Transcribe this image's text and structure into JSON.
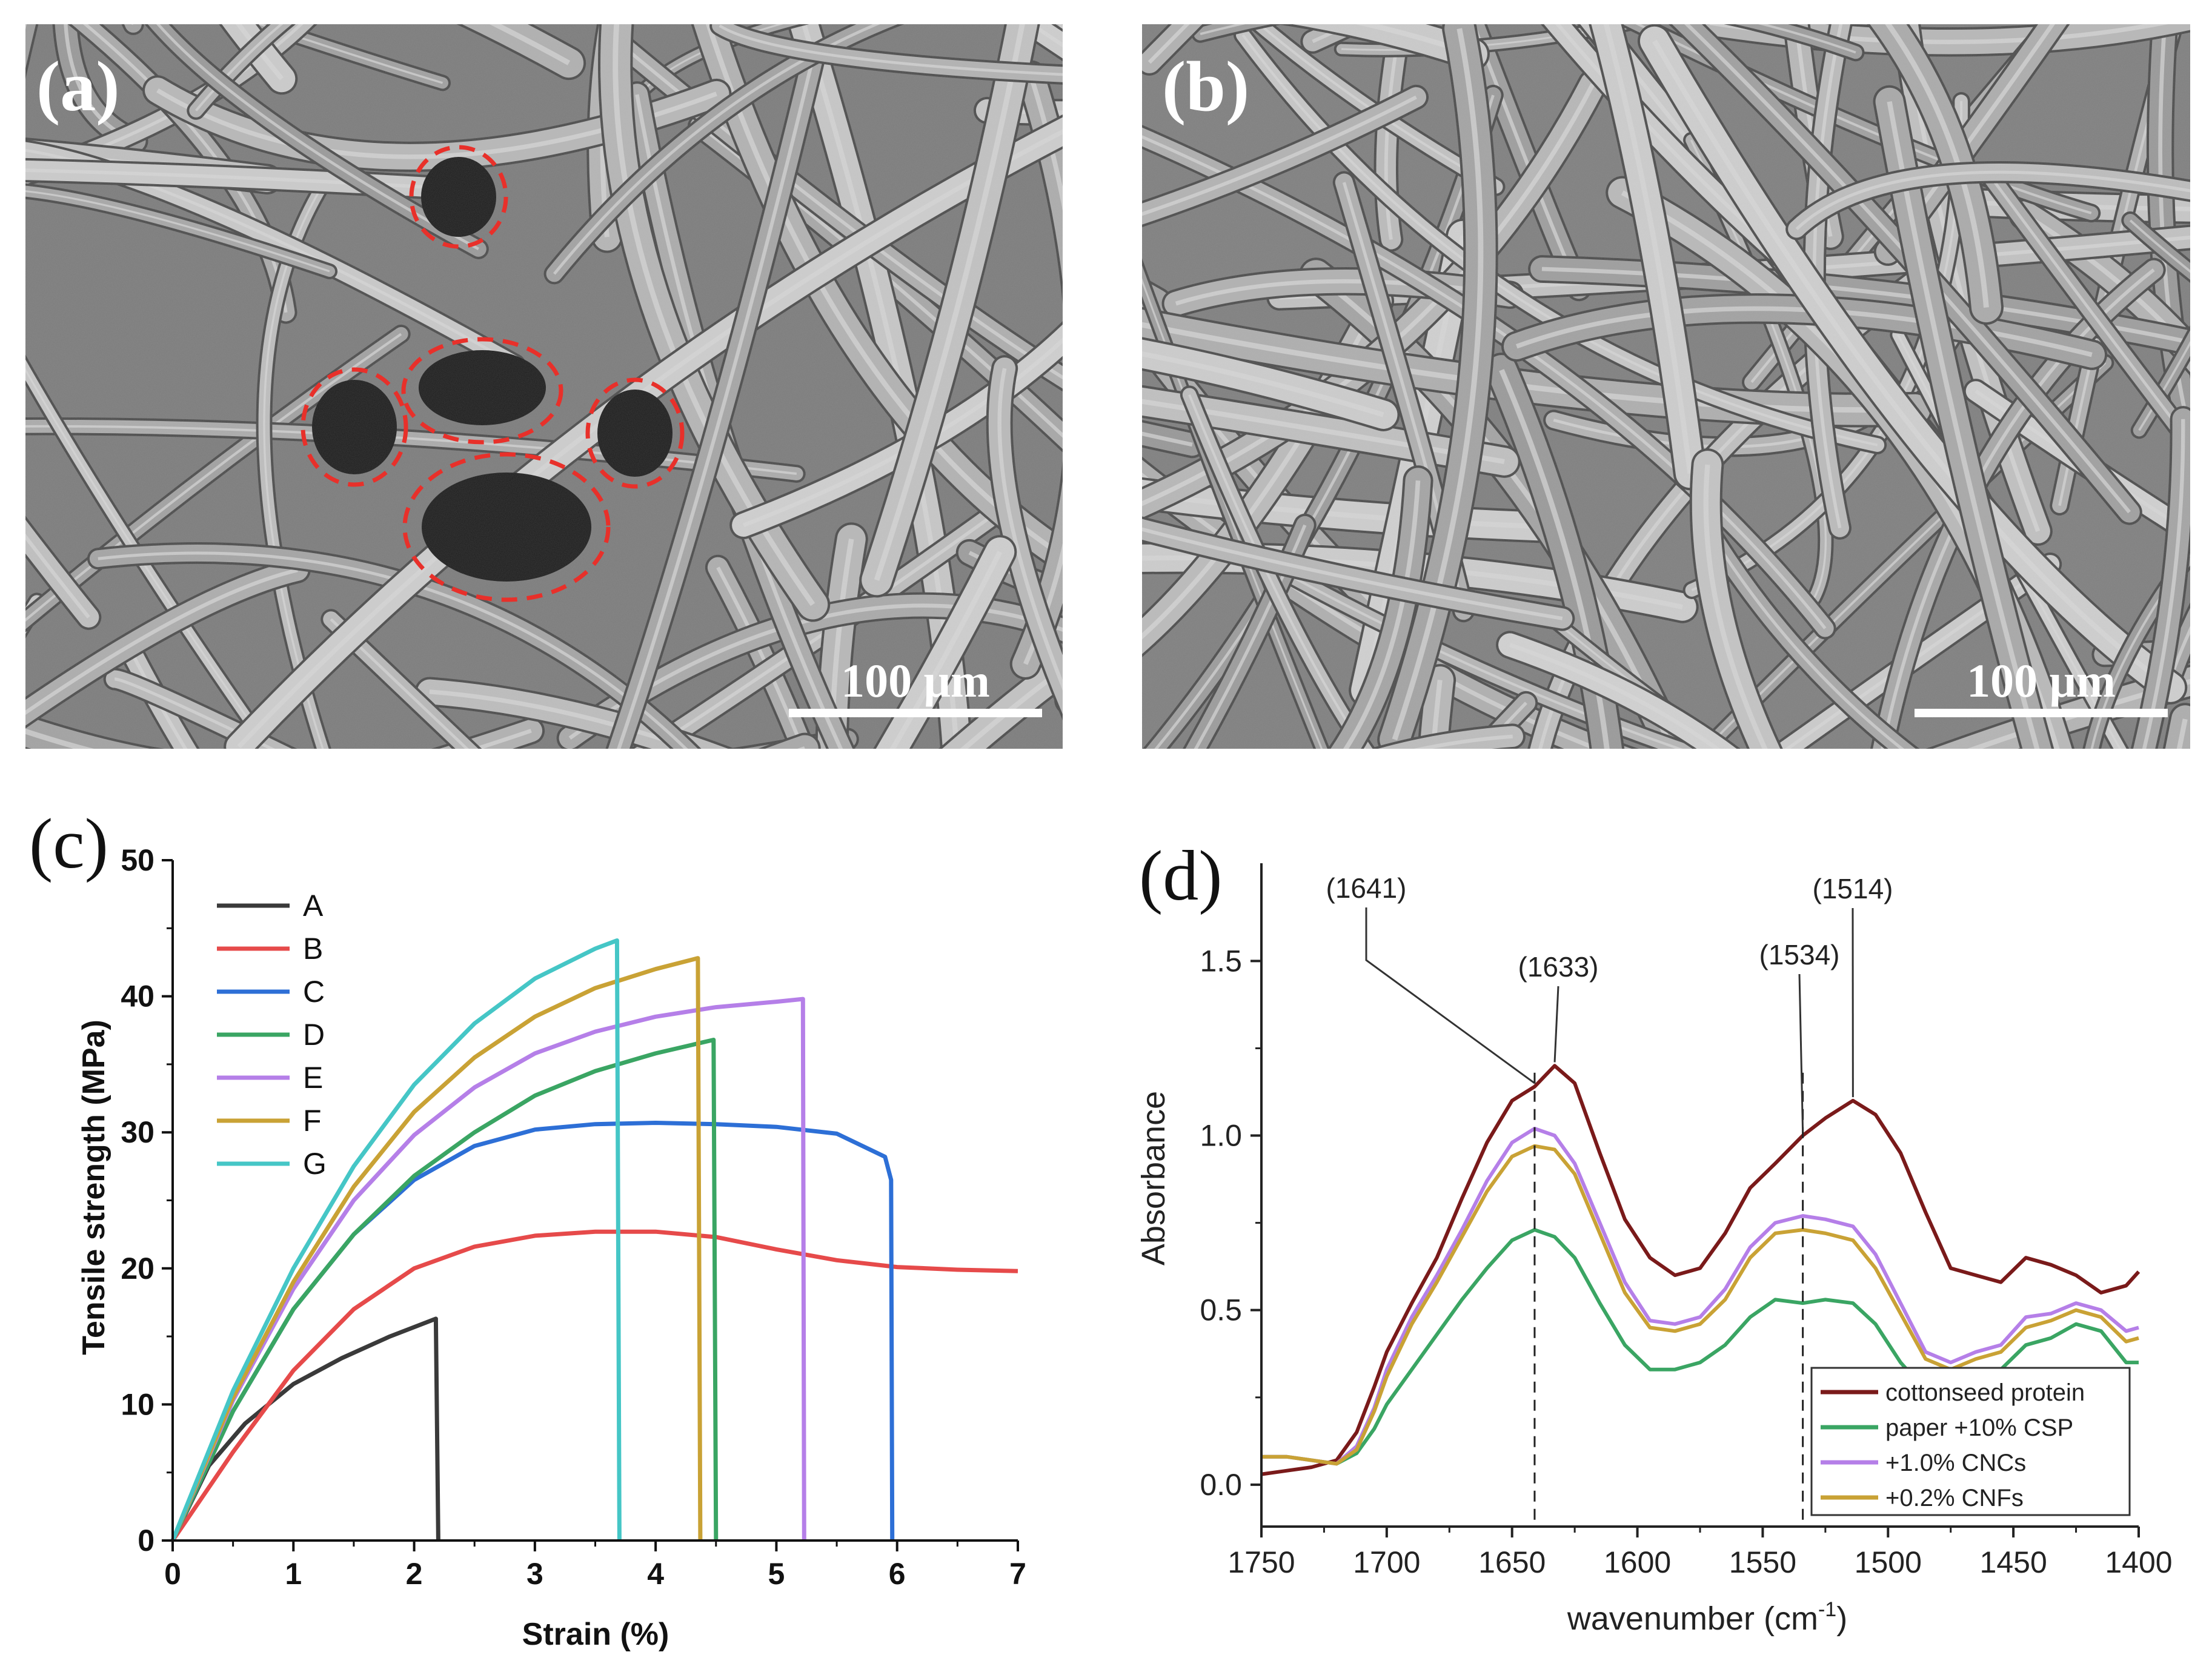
{
  "panels": {
    "a": {
      "label": "(a)",
      "scale_bar": "100 μm",
      "highlight_color": "#e8302a"
    },
    "b": {
      "label": "(b)",
      "scale_bar": "100 μm"
    }
  },
  "chart_data": [
    {
      "panel_label": "(c)",
      "type": "line",
      "xlabel": "Strain (%)",
      "ylabel": "Tensile strength (MPa)",
      "xlim": [
        0,
        7
      ],
      "ylim": [
        0,
        50
      ],
      "xticks": [
        0,
        1,
        2,
        3,
        4,
        5,
        6,
        7
      ],
      "yticks": [
        0,
        10,
        20,
        30,
        40,
        50
      ],
      "grid": false,
      "legend": "top-left",
      "series": [
        {
          "name": "A",
          "color": "#3a3a3a",
          "points": [
            [
              0,
              0
            ],
            [
              0.3,
              5.5
            ],
            [
              0.6,
              8.6
            ],
            [
              1.0,
              11.5
            ],
            [
              1.4,
              13.4
            ],
            [
              1.8,
              15.0
            ],
            [
              2.18,
              16.3
            ],
            [
              2.2,
              0
            ]
          ]
        },
        {
          "name": "B",
          "color": "#e64a4a",
          "points": [
            [
              0,
              0
            ],
            [
              0.5,
              6.5
            ],
            [
              1,
              12.5
            ],
            [
              1.5,
              17.0
            ],
            [
              2,
              20.0
            ],
            [
              2.5,
              21.6
            ],
            [
              3,
              22.4
            ],
            [
              3.5,
              22.7
            ],
            [
              4,
              22.7
            ],
            [
              4.5,
              22.3
            ],
            [
              5,
              21.4
            ],
            [
              5.5,
              20.6
            ],
            [
              6,
              20.1
            ],
            [
              6.5,
              19.9
            ],
            [
              7,
              19.8
            ]
          ]
        },
        {
          "name": "C",
          "color": "#2d6fd6",
          "points": [
            [
              0,
              0
            ],
            [
              0.5,
              9.5
            ],
            [
              1,
              17.0
            ],
            [
              1.5,
              22.5
            ],
            [
              2,
              26.5
            ],
            [
              2.5,
              29.0
            ],
            [
              3,
              30.2
            ],
            [
              3.5,
              30.6
            ],
            [
              4,
              30.7
            ],
            [
              4.5,
              30.6
            ],
            [
              5,
              30.4
            ],
            [
              5.5,
              29.9
            ],
            [
              5.9,
              28.2
            ],
            [
              5.95,
              26.5
            ],
            [
              5.96,
              0
            ]
          ]
        },
        {
          "name": "D",
          "color": "#3aa563",
          "points": [
            [
              0,
              0
            ],
            [
              0.5,
              9.5
            ],
            [
              1,
              17.0
            ],
            [
              1.5,
              22.5
            ],
            [
              2,
              26.8
            ],
            [
              2.5,
              30.0
            ],
            [
              3,
              32.7
            ],
            [
              3.5,
              34.5
            ],
            [
              4,
              35.8
            ],
            [
              4.48,
              36.8
            ],
            [
              4.5,
              0
            ]
          ]
        },
        {
          "name": "E",
          "color": "#b57fe8",
          "points": [
            [
              0,
              0
            ],
            [
              0.5,
              10.3
            ],
            [
              1,
              18.5
            ],
            [
              1.5,
              25.0
            ],
            [
              2,
              29.8
            ],
            [
              2.5,
              33.3
            ],
            [
              3,
              35.8
            ],
            [
              3.5,
              37.4
            ],
            [
              4,
              38.5
            ],
            [
              4.5,
              39.2
            ],
            [
              5,
              39.6
            ],
            [
              5.22,
              39.8
            ],
            [
              5.23,
              0
            ]
          ]
        },
        {
          "name": "F",
          "color": "#c9a235",
          "points": [
            [
              0,
              0
            ],
            [
              0.5,
              10.5
            ],
            [
              1,
              19.0
            ],
            [
              1.5,
              26.0
            ],
            [
              2,
              31.5
            ],
            [
              2.5,
              35.5
            ],
            [
              3,
              38.5
            ],
            [
              3.5,
              40.6
            ],
            [
              4,
              42.0
            ],
            [
              4.35,
              42.8
            ],
            [
              4.37,
              0
            ]
          ]
        },
        {
          "name": "G",
          "color": "#45c6c6",
          "points": [
            [
              0,
              0
            ],
            [
              0.5,
              11.0
            ],
            [
              1,
              20.0
            ],
            [
              1.5,
              27.5
            ],
            [
              2,
              33.5
            ],
            [
              2.5,
              38.0
            ],
            [
              3,
              41.3
            ],
            [
              3.5,
              43.5
            ],
            [
              3.68,
              44.1
            ],
            [
              3.7,
              0
            ]
          ]
        }
      ]
    },
    {
      "panel_label": "(d)",
      "type": "line",
      "xlabel": "wavenumber (cm",
      "xlabel_sup": "-1",
      "xlabel_end": ")",
      "ylabel": "Absorbance",
      "xlim": [
        1750,
        1400
      ],
      "ylim": [
        -0.12,
        1.78
      ],
      "xticks": [
        1750,
        1700,
        1650,
        1600,
        1550,
        1500,
        1450,
        1400
      ],
      "yticks": [
        0.0,
        0.5,
        1.0,
        1.5
      ],
      "ytick_labels": [
        "0.0",
        "0.5",
        "1.0",
        "1.5"
      ],
      "grid": false,
      "legend": "bottom-right",
      "reference_lines": [
        1641,
        1534
      ],
      "annotations": [
        {
          "text": "(1641)",
          "x": 1641
        },
        {
          "text": "(1633)",
          "x": 1633
        },
        {
          "text": "(1534)",
          "x": 1534
        },
        {
          "text": "(1514)",
          "x": 1514
        }
      ],
      "series": [
        {
          "name": "cottonseed  protein",
          "color": "#7a1a1a",
          "points": [
            [
              1750,
              0.03
            ],
            [
              1740,
              0.04
            ],
            [
              1730,
              0.05
            ],
            [
              1720,
              0.07
            ],
            [
              1712,
              0.15
            ],
            [
              1705,
              0.28
            ],
            [
              1700,
              0.38
            ],
            [
              1690,
              0.52
            ],
            [
              1680,
              0.65
            ],
            [
              1670,
              0.82
            ],
            [
              1660,
              0.98
            ],
            [
              1650,
              1.1
            ],
            [
              1641,
              1.14
            ],
            [
              1633,
              1.2
            ],
            [
              1625,
              1.15
            ],
            [
              1615,
              0.95
            ],
            [
              1605,
              0.76
            ],
            [
              1595,
              0.65
            ],
            [
              1585,
              0.6
            ],
            [
              1575,
              0.62
            ],
            [
              1565,
              0.72
            ],
            [
              1555,
              0.85
            ],
            [
              1545,
              0.92
            ],
            [
              1534,
              1.0
            ],
            [
              1525,
              1.05
            ],
            [
              1514,
              1.1
            ],
            [
              1505,
              1.06
            ],
            [
              1495,
              0.95
            ],
            [
              1485,
              0.78
            ],
            [
              1475,
              0.62
            ],
            [
              1465,
              0.6
            ],
            [
              1455,
              0.58
            ],
            [
              1445,
              0.65
            ],
            [
              1435,
              0.63
            ],
            [
              1425,
              0.6
            ],
            [
              1415,
              0.55
            ],
            [
              1405,
              0.57
            ],
            [
              1400,
              0.61
            ]
          ]
        },
        {
          "name": "paper +10% CSP",
          "color": "#3aa563",
          "points": [
            [
              1750,
              0.08
            ],
            [
              1740,
              0.08
            ],
            [
              1730,
              0.07
            ],
            [
              1720,
              0.06
            ],
            [
              1712,
              0.09
            ],
            [
              1705,
              0.16
            ],
            [
              1700,
              0.23
            ],
            [
              1690,
              0.33
            ],
            [
              1680,
              0.43
            ],
            [
              1670,
              0.53
            ],
            [
              1660,
              0.62
            ],
            [
              1650,
              0.7
            ],
            [
              1641,
              0.73
            ],
            [
              1633,
              0.71
            ],
            [
              1625,
              0.65
            ],
            [
              1615,
              0.52
            ],
            [
              1605,
              0.4
            ],
            [
              1595,
              0.33
            ],
            [
              1585,
              0.33
            ],
            [
              1575,
              0.35
            ],
            [
              1565,
              0.4
            ],
            [
              1555,
              0.48
            ],
            [
              1545,
              0.53
            ],
            [
              1534,
              0.52
            ],
            [
              1525,
              0.53
            ],
            [
              1514,
              0.52
            ],
            [
              1505,
              0.46
            ],
            [
              1495,
              0.35
            ],
            [
              1485,
              0.27
            ],
            [
              1475,
              0.27
            ],
            [
              1465,
              0.3
            ],
            [
              1455,
              0.33
            ],
            [
              1445,
              0.4
            ],
            [
              1435,
              0.42
            ],
            [
              1425,
              0.46
            ],
            [
              1415,
              0.44
            ],
            [
              1405,
              0.35
            ],
            [
              1400,
              0.35
            ]
          ]
        },
        {
          "name": "+1.0% CNCs",
          "color": "#b57fe8",
          "points": [
            [
              1750,
              0.08
            ],
            [
              1740,
              0.08
            ],
            [
              1730,
              0.07
            ],
            [
              1720,
              0.06
            ],
            [
              1712,
              0.11
            ],
            [
              1705,
              0.22
            ],
            [
              1700,
              0.33
            ],
            [
              1690,
              0.48
            ],
            [
              1680,
              0.6
            ],
            [
              1670,
              0.73
            ],
            [
              1660,
              0.87
            ],
            [
              1650,
              0.98
            ],
            [
              1641,
              1.02
            ],
            [
              1633,
              1.0
            ],
            [
              1625,
              0.92
            ],
            [
              1615,
              0.75
            ],
            [
              1605,
              0.58
            ],
            [
              1595,
              0.47
            ],
            [
              1585,
              0.46
            ],
            [
              1575,
              0.48
            ],
            [
              1565,
              0.56
            ],
            [
              1555,
              0.68
            ],
            [
              1545,
              0.75
            ],
            [
              1534,
              0.77
            ],
            [
              1525,
              0.76
            ],
            [
              1514,
              0.74
            ],
            [
              1505,
              0.66
            ],
            [
              1495,
              0.52
            ],
            [
              1485,
              0.38
            ],
            [
              1475,
              0.35
            ],
            [
              1465,
              0.38
            ],
            [
              1455,
              0.4
            ],
            [
              1445,
              0.48
            ],
            [
              1435,
              0.49
            ],
            [
              1425,
              0.52
            ],
            [
              1415,
              0.5
            ],
            [
              1405,
              0.44
            ],
            [
              1400,
              0.45
            ]
          ]
        },
        {
          "name": "+0.2% CNFs",
          "color": "#c9a235",
          "points": [
            [
              1750,
              0.08
            ],
            [
              1740,
              0.08
            ],
            [
              1730,
              0.07
            ],
            [
              1720,
              0.06
            ],
            [
              1712,
              0.1
            ],
            [
              1705,
              0.21
            ],
            [
              1700,
              0.31
            ],
            [
              1690,
              0.46
            ],
            [
              1680,
              0.58
            ],
            [
              1670,
              0.71
            ],
            [
              1660,
              0.84
            ],
            [
              1650,
              0.94
            ],
            [
              1641,
              0.97
            ],
            [
              1633,
              0.96
            ],
            [
              1625,
              0.89
            ],
            [
              1615,
              0.72
            ],
            [
              1605,
              0.55
            ],
            [
              1595,
              0.45
            ],
            [
              1585,
              0.44
            ],
            [
              1575,
              0.46
            ],
            [
              1565,
              0.53
            ],
            [
              1555,
              0.65
            ],
            [
              1545,
              0.72
            ],
            [
              1534,
              0.73
            ],
            [
              1525,
              0.72
            ],
            [
              1514,
              0.7
            ],
            [
              1505,
              0.62
            ],
            [
              1495,
              0.49
            ],
            [
              1485,
              0.36
            ],
            [
              1475,
              0.33
            ],
            [
              1465,
              0.36
            ],
            [
              1455,
              0.38
            ],
            [
              1445,
              0.45
            ],
            [
              1435,
              0.47
            ],
            [
              1425,
              0.5
            ],
            [
              1415,
              0.48
            ],
            [
              1405,
              0.41
            ],
            [
              1400,
              0.42
            ]
          ]
        }
      ]
    }
  ]
}
